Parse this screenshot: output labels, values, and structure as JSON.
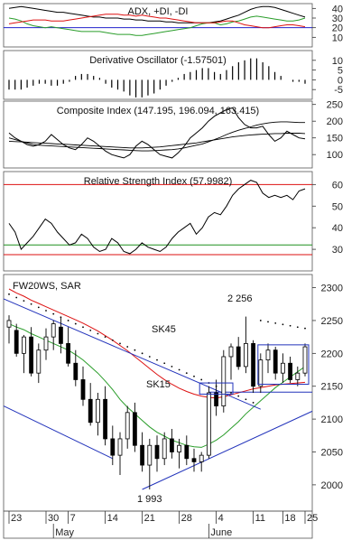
{
  "chart_data": [
    {
      "type": "line",
      "title": "ADX, +DI, -DI",
      "ylim": [
        0,
        45
      ],
      "yticks": [
        "10",
        "20",
        "30",
        "40"
      ],
      "reference_line": 20,
      "series": [
        {
          "name": "ADX",
          "color": "#000000",
          "values": [
            40,
            41,
            42,
            41,
            40,
            39,
            38,
            37,
            36,
            36,
            35,
            34,
            33,
            32,
            31,
            31,
            30,
            30,
            30,
            29,
            29,
            28,
            28,
            27,
            27,
            27,
            26,
            26,
            25,
            25,
            25,
            25,
            25,
            25,
            26,
            27,
            29,
            31,
            33,
            36,
            39,
            41,
            42,
            42,
            41,
            39,
            37,
            35,
            33,
            31
          ]
        },
        {
          "name": "+DI",
          "color": "#2a9d2a",
          "values": [
            30,
            29,
            27,
            24,
            22,
            21,
            20,
            21,
            20,
            19,
            18,
            17,
            16,
            16,
            16,
            16,
            15,
            14,
            13,
            13,
            13,
            12,
            12,
            13,
            14,
            15,
            16,
            17,
            18,
            19,
            20,
            22,
            24,
            25,
            25,
            23,
            24,
            26,
            27,
            29,
            31,
            32,
            31,
            30,
            29,
            28,
            27,
            27,
            28,
            30
          ]
        },
        {
          "name": "-DI",
          "color": "#dd1111",
          "values": [
            24,
            25,
            26,
            27,
            28,
            28,
            28,
            27,
            27,
            27,
            28,
            29,
            30,
            31,
            32,
            33,
            34,
            34,
            34,
            33,
            33,
            32,
            33,
            32,
            31,
            30,
            30,
            29,
            28,
            27,
            26,
            25,
            25,
            25,
            25,
            26,
            27,
            27,
            25,
            23,
            22,
            21,
            20,
            20,
            21,
            22,
            23,
            23,
            22,
            21
          ]
        }
      ]
    },
    {
      "type": "bar",
      "title": "Derivative Oscillator (-1.57501)",
      "ylim": [
        -10,
        15
      ],
      "yticks": [
        "10",
        "5",
        "0",
        "-5"
      ],
      "values": [
        -5,
        -5,
        -5,
        -4,
        -3,
        -2,
        -2,
        -3,
        -3,
        -2,
        -1,
        2,
        3,
        3,
        2,
        1,
        -2,
        -4,
        -5,
        -6,
        -8,
        -9,
        -9,
        -8,
        -7,
        -5,
        -3,
        -1,
        1,
        3,
        4,
        5,
        6,
        6,
        4,
        3,
        5,
        7,
        9,
        10,
        11,
        11,
        9,
        7,
        4,
        2,
        0,
        -1,
        -1,
        -2
      ]
    },
    {
      "type": "line",
      "title": "Composite Index (147.195, 196.094, 163.415)",
      "ylim": [
        60,
        260
      ],
      "yticks": [
        "250",
        "200",
        "150",
        "100"
      ],
      "series": [
        {
          "name": "Composite Index",
          "color": "#000000",
          "values": [
            165,
            150,
            140,
            130,
            125,
            130,
            140,
            160,
            145,
            130,
            120,
            115,
            130,
            150,
            140,
            125,
            110,
            100,
            95,
            90,
            100,
            125,
            140,
            130,
            115,
            100,
            95,
            90,
            105,
            125,
            150,
            165,
            180,
            200,
            215,
            225,
            235,
            240,
            210,
            190,
            180,
            180,
            185,
            160,
            140,
            150,
            170,
            160,
            150,
            147
          ]
        },
        {
          "name": "Avg 1",
          "color": "#000000",
          "values": [
            150,
            145,
            140,
            135,
            130,
            128,
            127,
            126,
            125,
            124,
            123,
            122,
            121,
            120,
            119,
            118,
            117,
            116,
            115,
            114,
            113,
            112,
            111,
            111,
            112,
            113,
            114,
            115,
            117,
            120,
            124,
            128,
            132,
            138,
            145,
            152,
            160,
            167,
            173,
            178,
            183,
            188,
            192,
            195,
            197,
            198,
            198,
            197,
            196,
            196
          ]
        },
        {
          "name": "Avg 2",
          "color": "#000000",
          "values": [
            140,
            139,
            138,
            137,
            136,
            135,
            134,
            133,
            132,
            131,
            130,
            129,
            128,
            127,
            126,
            125,
            124,
            123,
            122,
            121,
            120,
            120,
            120,
            121,
            122,
            123,
            125,
            127,
            129,
            131,
            133,
            135,
            138,
            141,
            144,
            147,
            150,
            153,
            155,
            157,
            159,
            160,
            161,
            162,
            163,
            163,
            164,
            164,
            164,
            163
          ]
        }
      ]
    },
    {
      "type": "line",
      "title": "Relative Strength Index (57.9982)",
      "ylim": [
        20,
        66
      ],
      "yticks": [
        "60",
        "50",
        "40",
        "30"
      ],
      "overbought": 60,
      "oversold": 32,
      "series": [
        {
          "name": "RSI",
          "color": "#000000",
          "values": [
            42,
            38,
            30,
            33,
            36,
            40,
            44,
            42,
            38,
            35,
            32,
            33,
            37,
            35,
            31,
            29,
            30,
            35,
            33,
            29,
            28,
            30,
            33,
            31,
            30,
            29,
            31,
            35,
            38,
            40,
            42,
            37,
            40,
            45,
            47,
            46,
            50,
            55,
            58,
            60,
            62,
            61,
            56,
            54,
            55,
            54,
            55,
            53,
            57,
            58
          ]
        }
      ]
    },
    {
      "type": "candlestick",
      "title": "FW20WS, SAR",
      "ylim": [
        1960,
        2320
      ],
      "yticks": [
        "2000",
        "2050",
        "2100",
        "2150",
        "2200",
        "2250",
        "2300"
      ],
      "ohlc": [
        {
          "o": 2240,
          "h": 2258,
          "l": 2215,
          "c": 2250
        },
        {
          "o": 2235,
          "h": 2245,
          "l": 2195,
          "c": 2200
        },
        {
          "o": 2200,
          "h": 2228,
          "l": 2170,
          "c": 2225
        },
        {
          "o": 2225,
          "h": 2240,
          "l": 2165,
          "c": 2170
        },
        {
          "o": 2170,
          "h": 2215,
          "l": 2155,
          "c": 2205
        },
        {
          "o": 2205,
          "h": 2238,
          "l": 2190,
          "c": 2225
        },
        {
          "o": 2225,
          "h": 2250,
          "l": 2205,
          "c": 2245
        },
        {
          "o": 2240,
          "h": 2256,
          "l": 2200,
          "c": 2215
        },
        {
          "o": 2215,
          "h": 2240,
          "l": 2180,
          "c": 2185
        },
        {
          "o": 2185,
          "h": 2205,
          "l": 2150,
          "c": 2160
        },
        {
          "o": 2160,
          "h": 2180,
          "l": 2120,
          "c": 2130
        },
        {
          "o": 2130,
          "h": 2155,
          "l": 2090,
          "c": 2095
        },
        {
          "o": 2095,
          "h": 2140,
          "l": 2075,
          "c": 2130
        },
        {
          "o": 2130,
          "h": 2150,
          "l": 2060,
          "c": 2070
        },
        {
          "o": 2070,
          "h": 2090,
          "l": 2030,
          "c": 2045
        },
        {
          "o": 2045,
          "h": 2080,
          "l": 2015,
          "c": 2070
        },
        {
          "o": 2070,
          "h": 2120,
          "l": 2055,
          "c": 2110
        },
        {
          "o": 2110,
          "h": 2125,
          "l": 2050,
          "c": 2060
        },
        {
          "o": 2060,
          "h": 2080,
          "l": 2020,
          "c": 2030
        },
        {
          "o": 2030,
          "h": 2070,
          "l": 1993,
          "c": 2060
        },
        {
          "o": 2060,
          "h": 2075,
          "l": 2020,
          "c": 2040
        },
        {
          "o": 2040,
          "h": 2080,
          "l": 2030,
          "c": 2070
        },
        {
          "o": 2070,
          "h": 2085,
          "l": 2040,
          "c": 2050
        },
        {
          "o": 2050,
          "h": 2070,
          "l": 2025,
          "c": 2060
        },
        {
          "o": 2060,
          "h": 2075,
          "l": 2030,
          "c": 2040
        },
        {
          "o": 2040,
          "h": 2055,
          "l": 2020,
          "c": 2035
        },
        {
          "o": 2035,
          "h": 2050,
          "l": 2020,
          "c": 2045
        },
        {
          "o": 2045,
          "h": 2150,
          "l": 2040,
          "c": 2140
        },
        {
          "o": 2140,
          "h": 2160,
          "l": 2105,
          "c": 2120
        },
        {
          "o": 2120,
          "h": 2205,
          "l": 2110,
          "c": 2195
        },
        {
          "o": 2195,
          "h": 2215,
          "l": 2160,
          "c": 2210
        },
        {
          "o": 2210,
          "h": 2225,
          "l": 2175,
          "c": 2180
        },
        {
          "o": 2180,
          "h": 2256,
          "l": 2170,
          "c": 2215
        },
        {
          "o": 2215,
          "h": 2220,
          "l": 2140,
          "c": 2150
        },
        {
          "o": 2150,
          "h": 2200,
          "l": 2140,
          "c": 2190
        },
        {
          "o": 2190,
          "h": 2215,
          "l": 2170,
          "c": 2205
        },
        {
          "o": 2205,
          "h": 2210,
          "l": 2160,
          "c": 2170
        },
        {
          "o": 2170,
          "h": 2200,
          "l": 2155,
          "c": 2185
        },
        {
          "o": 2185,
          "h": 2195,
          "l": 2155,
          "c": 2160
        },
        {
          "o": 2160,
          "h": 2180,
          "l": 2150,
          "c": 2170
        },
        {
          "o": 2170,
          "h": 2215,
          "l": 2165,
          "c": 2210
        }
      ],
      "sar": [
        2290,
        2285,
        2280,
        2275,
        2270,
        2265,
        2260,
        2255,
        2250,
        2245,
        2240,
        2235,
        2230,
        2225,
        2220,
        2215,
        2210,
        2205,
        2200,
        2195,
        2190,
        2185,
        2180,
        2175,
        2170,
        2165,
        2160,
        2155,
        2150,
        2145,
        2140,
        2135,
        2130,
        2125,
        2250,
        2248,
        2246,
        2244,
        2242,
        2240,
        2238
      ],
      "series": [
        {
          "name": "SK45",
          "color": "#dd1111",
          "values": [
            2298,
            2292,
            2287,
            2281,
            2276,
            2271,
            2266,
            2261,
            2256,
            2251,
            2246,
            2240,
            2234,
            2227,
            2220,
            2212,
            2204,
            2195,
            2186,
            2177,
            2168,
            2160,
            2153,
            2147,
            2142,
            2138,
            2135,
            2133,
            2132,
            2134,
            2137,
            2140,
            2143,
            2146,
            2148,
            2150,
            2152,
            2153,
            2154,
            2155,
            2156
          ]
        },
        {
          "name": "SK15",
          "color": "#2a9d2a",
          "values": [
            2245,
            2240,
            2236,
            2230,
            2225,
            2220,
            2215,
            2210,
            2205,
            2198,
            2190,
            2180,
            2170,
            2158,
            2145,
            2130,
            2118,
            2108,
            2098,
            2088,
            2080,
            2074,
            2068,
            2064,
            2060,
            2058,
            2057,
            2062,
            2068,
            2076,
            2086,
            2096,
            2108,
            2118,
            2128,
            2138,
            2148,
            2156,
            2164,
            2172,
            2180
          ]
        }
      ],
      "annotations": [
        "2 256",
        "1 993",
        "SK45",
        "SK15"
      ],
      "xticks": [
        {
          "label": "23",
          "i": 0
        },
        {
          "label": "30",
          "i": 5
        },
        {
          "label": "7",
          "i": 8
        },
        {
          "label": "14",
          "i": 13
        },
        {
          "label": "21",
          "i": 18
        },
        {
          "label": "28",
          "i": 23
        },
        {
          "label": "4",
          "i": 28
        },
        {
          "label": "11",
          "i": 33
        },
        {
          "label": "18",
          "i": 37
        },
        {
          "label": "25",
          "i": 40
        }
      ],
      "month_labels": [
        {
          "label": "May",
          "i": 6
        },
        {
          "label": "June",
          "i": 27
        }
      ]
    }
  ]
}
